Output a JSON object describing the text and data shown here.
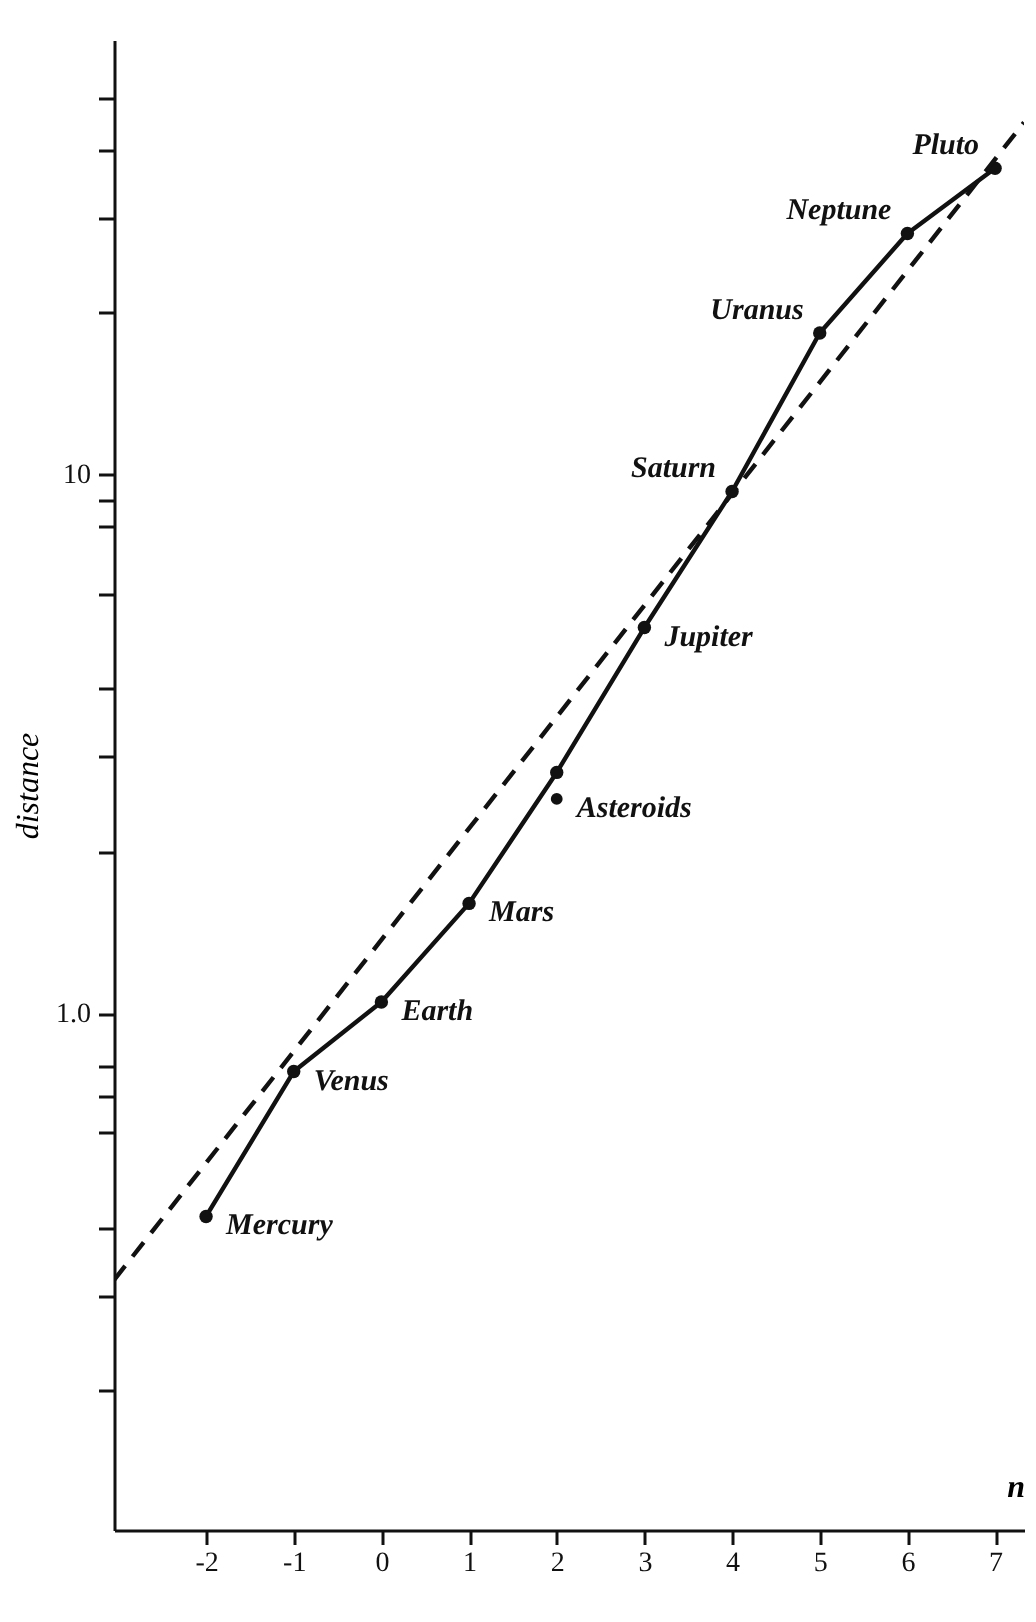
{
  "chart_data": {
    "type": "line",
    "xlabel": "n",
    "ylabel": "distance",
    "log": "y",
    "xlim": [
      -3.05,
      7.33
    ],
    "xticks": [
      -2,
      -1,
      0,
      1,
      2,
      3,
      4,
      5,
      6,
      7
    ],
    "ylim": [
      0.11,
      64
    ],
    "yticks": [
      {
        "value": 0.2,
        "label": null
      },
      {
        "value": 0.3,
        "label": null
      },
      {
        "value": 0.4,
        "label": null
      },
      {
        "value": 0.6,
        "label": null
      },
      {
        "value": 0.7,
        "label": null
      },
      {
        "value": 0.8,
        "label": null
      },
      {
        "value": 1,
        "label": "1.0"
      },
      {
        "value": 2,
        "label": null
      },
      {
        "value": 3,
        "label": null
      },
      {
        "value": 4,
        "label": null
      },
      {
        "value": 6,
        "label": null
      },
      {
        "value": 8,
        "label": null
      },
      {
        "value": 9,
        "label": null
      },
      {
        "value": 10,
        "label": "10"
      },
      {
        "value": 20,
        "label": null
      },
      {
        "value": 30,
        "label": null
      },
      {
        "value": 40,
        "label": null
      },
      {
        "value": 50,
        "label": null
      }
    ],
    "grid": false,
    "series": [
      {
        "color": "#111111",
        "marker": "circle",
        "line_style": "solid",
        "x": [
          -2,
          -1,
          0,
          1,
          2,
          3,
          4,
          5,
          6,
          7
        ],
        "values": [
          0.42,
          0.78,
          1.05,
          1.6,
          2.8,
          5.2,
          9.3,
          18.3,
          28,
          37
        ]
      },
      {
        "type": "scatter",
        "color": "#111111",
        "marker": "circle",
        "x": [
          2
        ],
        "values": [
          2.5
        ]
      },
      {
        "type": "line",
        "color": "#111111",
        "marker": "none",
        "line_style": "dashed",
        "x": [
          -3.05,
          7.33
        ],
        "values": [
          0.32,
          45
        ]
      }
    ],
    "annotations": [
      {
        "text": "Mercury",
        "x": -2,
        "y": 0.42
      },
      {
        "text": "Venus",
        "x": -1,
        "y": 0.78
      },
      {
        "text": "Earth",
        "x": 0,
        "y": 1.05
      },
      {
        "text": "Mars",
        "x": 1,
        "y": 1.6
      },
      {
        "text": "Asteroids",
        "x": 2,
        "y": 2.5
      },
      {
        "text": "Jupiter",
        "x": 3,
        "y": 5.2
      },
      {
        "text": "Saturn",
        "x": 4,
        "y": 9.3
      },
      {
        "text": "Uranus",
        "x": 5,
        "y": 18.3
      },
      {
        "text": "Neptune",
        "x": 6,
        "y": 28
      },
      {
        "text": "Pluto",
        "x": 7,
        "y": 37
      }
    ]
  }
}
